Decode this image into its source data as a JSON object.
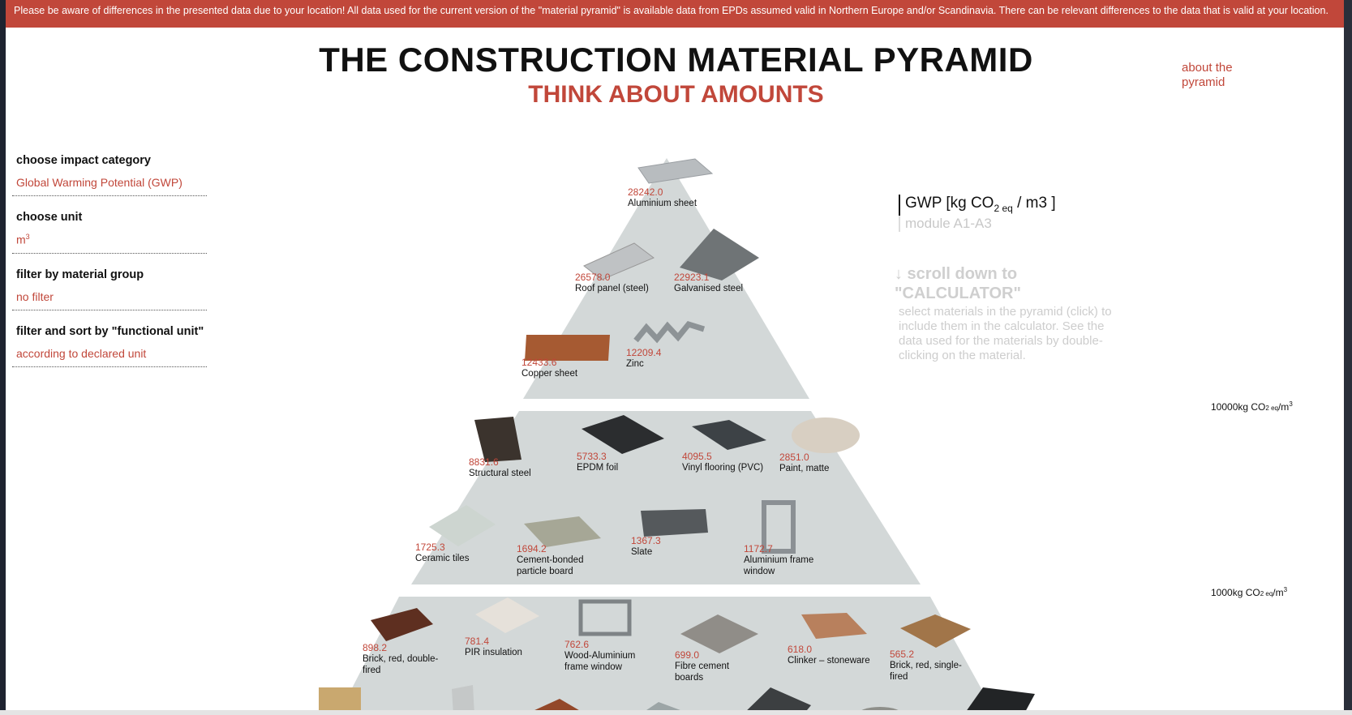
{
  "banner": {
    "text": "Please be aware of differences in the presented data due to your location! All data used for the current version of the \"material pyramid\" is available data from EPDs assumed valid in Northern Europe and/or Scandinavia. There can be relevant differences to the data that is valid at your location."
  },
  "header": {
    "title": "THE CONSTRUCTION MATERIAL PYRAMID",
    "subtitle": "THINK ABOUT AMOUNTS",
    "about_link": "about the pyramid"
  },
  "filters": {
    "impact": {
      "label": "choose impact category",
      "value": "Global Warming Potential (GWP)"
    },
    "unit": {
      "label": "choose unit",
      "value": "m",
      "value_sup": "3"
    },
    "group": {
      "label": "filter by material group",
      "value": "no filter"
    },
    "functional": {
      "label": "filter and sort by \"functional unit\"",
      "value": "according to declared unit"
    }
  },
  "legend": {
    "gwp_prefix": "GWP [kg CO",
    "gwp_sub": "2 eq",
    "gwp_suffix": " / m3 ]",
    "module": "module A1-A3"
  },
  "scroll_hint": {
    "line1": "↓ scroll down to",
    "line2": "\"CALCULATOR\""
  },
  "info_text": "select materials in the pyramid (click) to include them in the calculator. See the data used for the materials by double-clicking on the material.",
  "scale_labels": [
    {
      "prefix": "10000kg CO",
      "sub": "2 eq",
      "suffix": "/m",
      "sup": "3"
    },
    {
      "prefix": "1000kg CO",
      "sub": "2 eq",
      "suffix": "/m",
      "sup": "3"
    }
  ],
  "colors": {
    "accent": "#c1473a",
    "pyramid": "#d3d8d8",
    "banner": "#c1473a"
  },
  "materials": [
    {
      "name": "Aluminium sheet",
      "value": "28242.0"
    },
    {
      "name": "Roof panel (steel)",
      "value": "26578.0"
    },
    {
      "name": "Galvanised steel",
      "value": "22923.1"
    },
    {
      "name": "Copper sheet",
      "value": "12433.6"
    },
    {
      "name": "Zinc",
      "value": "12209.4"
    },
    {
      "name": "Structural steel",
      "value": "8831.6"
    },
    {
      "name": "EPDM foil",
      "value": "5733.3"
    },
    {
      "name": "Vinyl flooring (PVC)",
      "value": "4095.5"
    },
    {
      "name": "Paint, matte",
      "value": "2851.0"
    },
    {
      "name": "Ceramic tiles",
      "value": "1725.3"
    },
    {
      "name": "Cement-bonded particle board",
      "value": "1694.2"
    },
    {
      "name": "Slate",
      "value": "1367.3"
    },
    {
      "name": "Aluminium frame window",
      "value": "1172.7"
    },
    {
      "name": "Brick, red, double-fired",
      "value": "898.2"
    },
    {
      "name": "PIR insulation",
      "value": "781.4"
    },
    {
      "name": "Wood-Aluminium frame window",
      "value": "762.6"
    },
    {
      "name": "Fibre cement boards",
      "value": "699.0"
    },
    {
      "name": "Clinker – stoneware",
      "value": "618.0"
    },
    {
      "name": "Brick, red, single-fired",
      "value": "565.2"
    }
  ]
}
